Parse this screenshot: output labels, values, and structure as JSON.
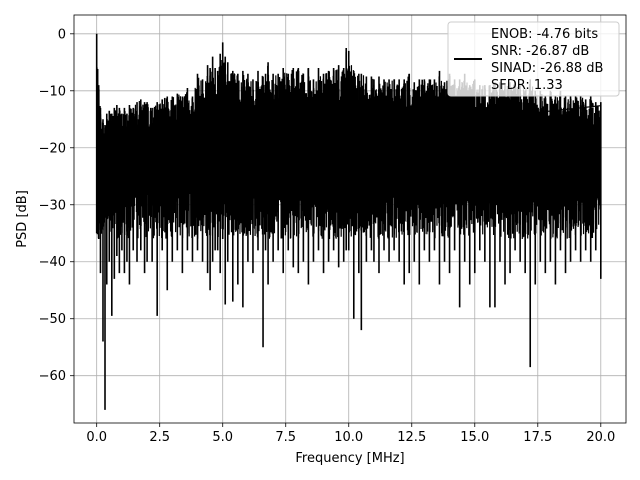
{
  "chart_data": {
    "type": "line",
    "title": "",
    "xlabel": "Frequency [MHz]",
    "ylabel": "PSD [dB]",
    "xlim": [
      -0.9,
      21.0
    ],
    "ylim": [
      -68.3,
      3.3
    ],
    "xticks": [
      0.0,
      2.5,
      5.0,
      7.5,
      10.0,
      12.5,
      15.0,
      17.5,
      20.0
    ],
    "xtick_labels": [
      "0.0",
      "2.5",
      "5.0",
      "7.5",
      "10.0",
      "12.5",
      "15.0",
      "17.5",
      "20.0"
    ],
    "yticks": [
      0,
      -10,
      -20,
      -30,
      -40,
      -50,
      -60
    ],
    "ytick_labels": [
      "0",
      "−10",
      "−20",
      "−30",
      "−40",
      "−50",
      "−60"
    ],
    "grid": true,
    "legend_position": "top-right",
    "legend": [
      "ENOB: -4.76 bits",
      "SNR: -26.87 dB",
      "SINAD: -26.88 dB",
      "SFDR: 1.33"
    ],
    "series": [
      {
        "color": "#000000",
        "x": [
          0.0,
          0.08,
          0.15,
          0.25,
          0.33,
          0.4,
          0.5,
          0.6,
          0.7,
          0.8,
          0.9,
          1.0,
          1.1,
          1.2,
          1.3,
          1.45,
          1.6,
          1.75,
          1.9,
          2.0,
          2.2,
          2.4,
          2.6,
          2.8,
          3.0,
          3.2,
          3.4,
          3.6,
          3.8,
          4.0,
          4.2,
          4.4,
          4.5,
          4.6,
          4.7,
          4.8,
          4.9,
          5.0,
          5.1,
          5.2,
          5.4,
          5.6,
          5.8,
          6.0,
          6.2,
          6.4,
          6.6,
          6.7,
          6.8,
          7.0,
          7.2,
          7.4,
          7.6,
          7.8,
          8.0,
          8.2,
          8.4,
          8.6,
          8.8,
          9.0,
          9.2,
          9.4,
          9.6,
          9.8,
          9.9,
          10.0,
          10.2,
          10.4,
          10.5,
          10.7,
          10.9,
          11.0,
          11.2,
          11.4,
          11.6,
          11.8,
          12.0,
          12.2,
          12.4,
          12.6,
          12.8,
          13.0,
          13.2,
          13.4,
          13.6,
          13.8,
          14.0,
          14.2,
          14.4,
          14.6,
          14.8,
          15.0,
          15.2,
          15.4,
          15.6,
          15.8,
          16.0,
          16.2,
          16.4,
          16.6,
          16.8,
          17.0,
          17.2,
          17.4,
          17.6,
          17.8,
          18.0,
          18.2,
          18.4,
          18.6,
          18.8,
          19.0,
          19.2,
          19.4,
          19.6,
          19.8,
          20.0
        ],
        "upper": [
          0.0,
          -9,
          -13,
          -15,
          -16,
          -14,
          -13.5,
          -14,
          -13,
          -12.5,
          -13,
          -14,
          -13,
          -14,
          -12.5,
          -13,
          -12,
          -11.5,
          -12,
          -12,
          -13,
          -12,
          -11.5,
          -11,
          -11,
          -10.5,
          -11,
          -9.5,
          -11,
          -7,
          -8,
          -5.5,
          -6,
          -4,
          -6,
          -6.5,
          -3.5,
          -1.5,
          -4,
          -5,
          -6.5,
          -7,
          -6.5,
          -7,
          -8,
          -6.5,
          -7.5,
          -7,
          -5,
          -7,
          -7,
          -6,
          -7,
          -6,
          -6,
          -7,
          -6,
          -8,
          -6,
          -7,
          -6.5,
          -6,
          -5.5,
          -6,
          -2.5,
          -3,
          -6.5,
          -7,
          -7,
          -7.5,
          -7.5,
          -8,
          -7.5,
          -8,
          -8,
          -8,
          -8,
          -8,
          -7,
          -8.5,
          -8,
          -8,
          -8,
          -8,
          -6.5,
          -8.5,
          -7,
          -8,
          -8,
          -7,
          -9,
          -8,
          -9,
          -9,
          -9,
          -8.5,
          -8.5,
          -9,
          -8.5,
          -8.5,
          -9,
          -10,
          -8,
          -10,
          -10,
          -11,
          -10,
          -11,
          -10,
          -11,
          -11,
          -11,
          -11,
          -11.5,
          -11,
          -12,
          -12
        ],
        "lower": [
          -35,
          -36,
          -42,
          -54,
          -66,
          -44,
          -40,
          -49.5,
          -43,
          -39,
          -42,
          -38,
          -42,
          -40,
          -44,
          -38,
          -40,
          -38,
          -42,
          -40,
          -40,
          -49.5,
          -38,
          -45,
          -40,
          -38,
          -42,
          -38,
          -40,
          -38,
          -40,
          -42,
          -45,
          -40,
          -38,
          -38,
          -42,
          -36,
          -47.5,
          -40,
          -47,
          -44,
          -48,
          -40,
          -42,
          -38,
          -55,
          -38,
          -44,
          -40,
          -38,
          -42,
          -38,
          -41,
          -42,
          -40,
          -44,
          -40,
          -38,
          -42,
          -40,
          -38,
          -41,
          -40,
          -38,
          -38,
          -50,
          -42,
          -52,
          -40,
          -38,
          -40,
          -42,
          -38,
          -40,
          -38,
          -40,
          -44,
          -42,
          -40,
          -44,
          -38,
          -40,
          -38,
          -44,
          -40,
          -42,
          -38,
          -48,
          -40,
          -44,
          -42,
          -38,
          -40,
          -48,
          -48,
          -40,
          -44,
          -42,
          -38,
          -40,
          -42,
          -58.5,
          -44,
          -40,
          -42,
          -40,
          -44,
          -38,
          -42,
          -40,
          -38,
          -40,
          -38,
          -40,
          -38,
          -43
        ]
      }
    ]
  }
}
